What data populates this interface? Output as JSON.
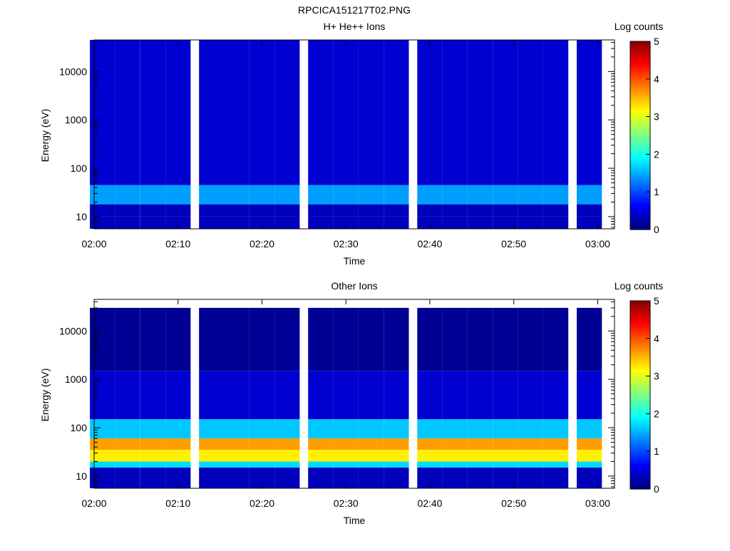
{
  "page": {
    "title": "RPCICA151217T02.PNG"
  },
  "colors": {
    "background": "#ffffff",
    "axis": "#000000",
    "colormap": [
      "#000080",
      "#0000ff",
      "#0080ff",
      "#00ffff",
      "#80ff80",
      "#ffff00",
      "#ff8000",
      "#ff0000",
      "#800000"
    ]
  },
  "chart_data": [
    {
      "type": "heatmap",
      "title": "H+ He++ Ions",
      "xlabel": "Time",
      "ylabel": "Energy (eV)",
      "x_ticks": [
        "02:00",
        "02:10",
        "02:20",
        "02:30",
        "02:40",
        "02:50",
        "03:00"
      ],
      "y_ticks": [
        "10",
        "100",
        "1000",
        "10000"
      ],
      "y_scale": "log",
      "ylim": [
        5.6,
        45000
      ],
      "xlim": [
        "02:00",
        "03:02"
      ],
      "colorbar": {
        "label": "Log counts",
        "ticks": [
          "0",
          "1",
          "2",
          "3",
          "4",
          "5"
        ],
        "range": [
          0,
          5
        ]
      },
      "time_bins": [
        "02:01",
        "02:04",
        "02:07",
        "02:10",
        "02:14",
        "02:17",
        "02:20",
        "02:23",
        "02:27",
        "02:30",
        "02:33",
        "02:36",
        "02:40",
        "02:43",
        "02:46",
        "02:49",
        "02:52",
        "02:55",
        "02:59"
      ],
      "summary": [
        {
          "emin": 5.6,
          "emax": 10,
          "level": 0.3
        },
        {
          "emin": 10,
          "emax": 18,
          "level": 0.3
        },
        {
          "emin": 18,
          "emax": 45,
          "level": 1.4
        },
        {
          "emin": 45,
          "emax": 45000,
          "level": 0.4
        }
      ]
    },
    {
      "type": "heatmap",
      "title": "Other Ions",
      "xlabel": "Time",
      "ylabel": "Energy (eV)",
      "x_ticks": [
        "02:00",
        "02:10",
        "02:20",
        "02:30",
        "02:40",
        "02:50",
        "03:00"
      ],
      "y_ticks": [
        "10",
        "100",
        "1000",
        "10000"
      ],
      "y_scale": "log",
      "ylim": [
        5.6,
        45000
      ],
      "xlim": [
        "02:00",
        "03:02"
      ],
      "colorbar": {
        "label": "Log counts",
        "ticks": [
          "0",
          "1",
          "2",
          "3",
          "4",
          "5"
        ],
        "range": [
          0,
          5
        ]
      },
      "time_bins": [
        "02:01",
        "02:04",
        "02:07",
        "02:10",
        "02:14",
        "02:17",
        "02:20",
        "02:23",
        "02:27",
        "02:30",
        "02:33",
        "02:36",
        "02:40",
        "02:43",
        "02:46",
        "02:49",
        "02:52",
        "02:55",
        "02:59"
      ],
      "summary": [
        {
          "emin": 5.6,
          "emax": 15,
          "level": 0.3
        },
        {
          "emin": 15,
          "emax": 20,
          "level": 1.7
        },
        {
          "emin": 20,
          "emax": 35,
          "level": 3.2
        },
        {
          "emin": 35,
          "emax": 60,
          "level": 3.6
        },
        {
          "emin": 60,
          "emax": 150,
          "level": 1.6
        },
        {
          "emin": 150,
          "emax": 1500,
          "level": 0.4
        },
        {
          "emin": 1500,
          "emax": 30000,
          "level": 0.1
        }
      ]
    }
  ]
}
